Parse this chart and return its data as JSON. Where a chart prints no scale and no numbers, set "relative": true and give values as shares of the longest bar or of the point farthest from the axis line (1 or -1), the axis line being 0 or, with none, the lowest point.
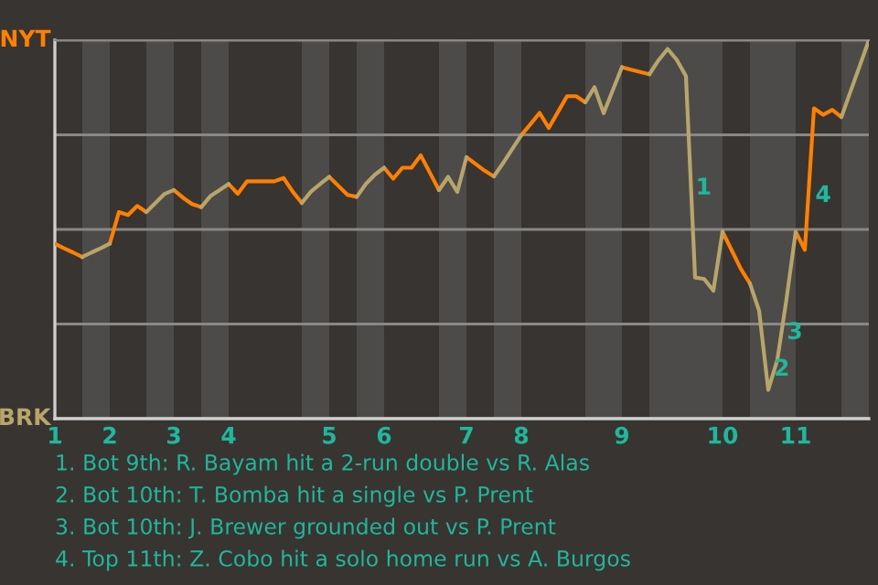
{
  "chart_data": {
    "type": "line",
    "relative": true,
    "categories": [
      "1",
      null,
      null,
      null,
      null,
      null,
      "2",
      null,
      null,
      null,
      null,
      null,
      null,
      "3",
      null,
      null,
      null,
      null,
      null,
      "4",
      null,
      null,
      null,
      null,
      null,
      null,
      null,
      null,
      null,
      null,
      "5",
      null,
      null,
      null,
      null,
      null,
      "6",
      null,
      null,
      null,
      null,
      null,
      null,
      null,
      null,
      "7",
      null,
      null,
      null,
      null,
      null,
      "8",
      null,
      null,
      null,
      null,
      null,
      null,
      null,
      null,
      null,
      null,
      "9",
      null,
      null,
      null,
      null,
      null,
      null,
      null,
      null,
      null,
      null,
      "10",
      null,
      null,
      null,
      null,
      null,
      null,
      null,
      "11",
      null,
      null,
      null,
      null,
      null,
      null,
      null,
      null
    ],
    "grid": "y",
    "series": [
      {
        "name": "NYT",
        "color": "#ff8000",
        "values": [
          0.462,
          0.45,
          0.439,
          0.427,
          null,
          null,
          0.462,
          0.546,
          0.538,
          0.562,
          0.546,
          null,
          null,
          0.604,
          0.584,
          0.567,
          0.559,
          null,
          null,
          0.62,
          0.594,
          0.627,
          0.627,
          0.627,
          0.627,
          0.636,
          0.6,
          0.57,
          null,
          null,
          0.639,
          0.615,
          0.591,
          0.586,
          null,
          null,
          0.663,
          0.634,
          0.663,
          0.663,
          0.696,
          0.65,
          0.604,
          null,
          null,
          0.691,
          0.673,
          0.655,
          0.64,
          null,
          null,
          0.749,
          0.778,
          0.808,
          0.768,
          0.81,
          0.852,
          0.852,
          0.836,
          null,
          null,
          null,
          0.929,
          0.922,
          0.916,
          0.91,
          null,
          null,
          null,
          null,
          null,
          null,
          null,
          0.494,
          0.445,
          0.396,
          0.357,
          null,
          null,
          null,
          null,
          0.494,
          0.446,
          0.82,
          0.803,
          0.816,
          0.797,
          null,
          null,
          null
        ]
      },
      {
        "name": "BRK",
        "color": "#b8a56a",
        "values": [
          null,
          null,
          null,
          0.427,
          0.439,
          0.45,
          0.462,
          null,
          null,
          null,
          0.546,
          0.57,
          0.594,
          0.604,
          null,
          null,
          0.559,
          0.588,
          0.604,
          0.62,
          null,
          null,
          null,
          null,
          null,
          null,
          null,
          0.57,
          0.6,
          0.62,
          0.639,
          null,
          null,
          0.586,
          0.62,
          0.645,
          0.663,
          null,
          null,
          null,
          null,
          null,
          0.604,
          0.639,
          0.599,
          0.691,
          null,
          null,
          0.64,
          0.675,
          0.712,
          0.749,
          null,
          null,
          null,
          null,
          null,
          null,
          0.836,
          0.876,
          0.807,
          0.868,
          0.929,
          null,
          null,
          0.91,
          0.947,
          0.977,
          0.948,
          0.905,
          0.373,
          0.369,
          0.338,
          0.494,
          null,
          null,
          0.357,
          0.285,
          0.076,
          0.156,
          0.317,
          0.494,
          null,
          null,
          null,
          null,
          0.797,
          0.865,
          0.932,
          1
        ]
      }
    ],
    "annotations": [
      "1",
      "2",
      "3",
      "4",
      "1. Bot 9th: R. Bayam hit a 2-run double vs R. Alas",
      "2. Bot 10th: T. Bomba hit a single vs P. Prent",
      "3. Bot 10th: J. Brewer grounded out vs P. Prent",
      "4. Top 11th: Z. Cobo hit a solo home run vs A. Burgos"
    ]
  }
}
